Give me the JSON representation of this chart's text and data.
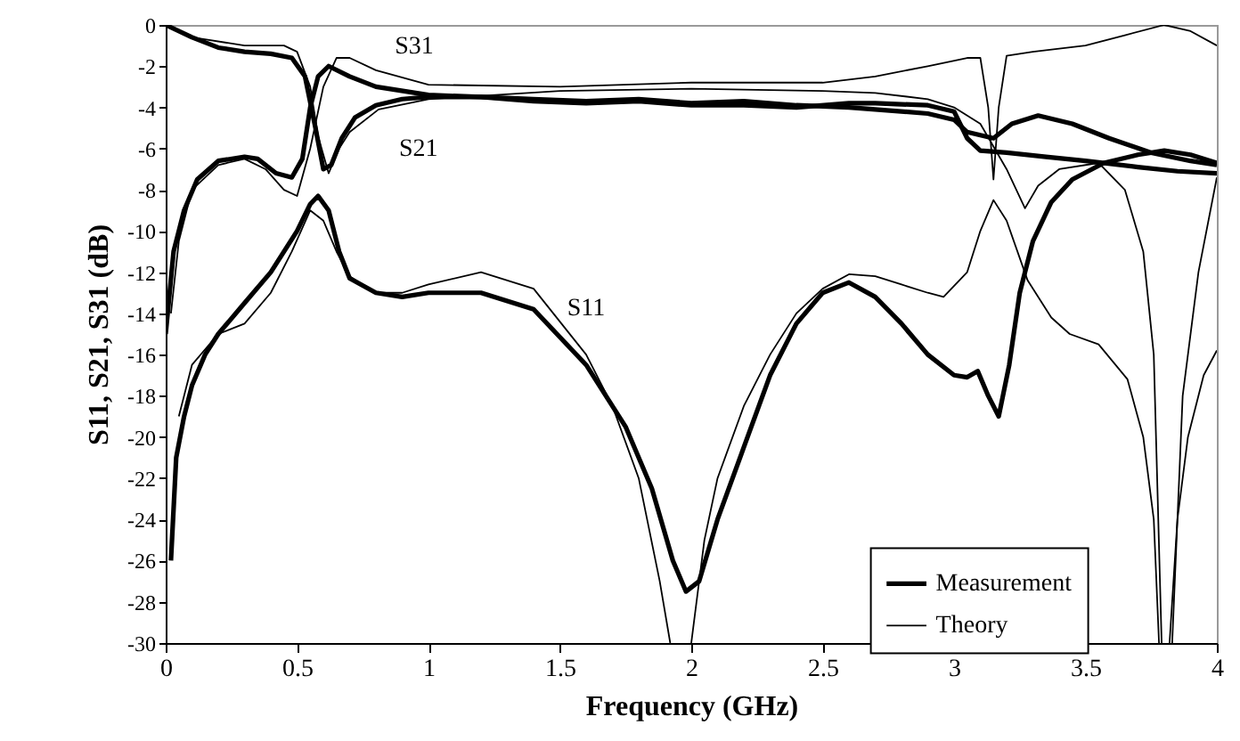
{
  "chart_data": {
    "type": "line",
    "xlabel": "Frequency (GHz)",
    "ylabel": "S11, S21, S31 (dB)",
    "xlim": [
      0,
      4
    ],
    "xticks": [
      0,
      0.5,
      1,
      1.5,
      2,
      2.5,
      3,
      3.5,
      4
    ],
    "ylim": [
      -30,
      0
    ],
    "yticks": [
      -30,
      -28,
      -26,
      -24,
      -22,
      -20,
      -18,
      -16,
      -14,
      -12,
      -10,
      -8,
      -6,
      -4,
      -2,
      0
    ],
    "grid": false,
    "legend": "bottom right",
    "annotations": [
      "S31",
      "S21",
      "S11"
    ],
    "series": [
      {
        "name": "Measurement",
        "color": "#000000",
        "x": [
          0.02,
          0.04,
          0.07,
          0.1,
          0.15,
          0.2,
          0.3,
          0.4,
          0.5,
          0.55,
          0.58,
          0.62,
          0.66,
          0.7,
          0.8,
          0.9,
          1.0,
          1.2,
          1.4,
          1.6,
          1.75,
          1.85,
          1.93,
          1.98,
          2.03,
          2.1,
          2.2,
          2.3,
          2.4,
          2.5,
          2.6,
          2.7,
          2.8,
          2.9,
          3.0,
          3.05,
          3.09,
          3.13,
          3.17,
          3.21,
          3.25,
          3.3,
          3.37,
          3.45,
          3.57,
          3.7,
          3.8,
          3.9,
          4.0
        ],
        "values": [
          -26,
          -21,
          -19,
          -17.5,
          -16,
          -15,
          -13.5,
          -12,
          -10,
          -8.7,
          -8.3,
          -9,
          -11,
          -12.3,
          -13,
          -13.2,
          -13,
          -13,
          -13.8,
          -16.5,
          -19.5,
          -22.5,
          -26,
          -27.5,
          -27,
          -24,
          -20.5,
          -17,
          -14.5,
          -13,
          -12.5,
          -13.2,
          -14.5,
          -16,
          -17,
          -17.1,
          -16.8,
          -18,
          -19,
          -16.5,
          -13,
          -10.5,
          -8.6,
          -7.5,
          -6.7,
          -6.3,
          -6.1,
          -6.3,
          -6.7
        ]
      },
      {
        "name": "Theory",
        "color": "#000000",
        "x": [
          0.05,
          0.1,
          0.2,
          0.3,
          0.4,
          0.48,
          0.55,
          0.6,
          0.65,
          0.7,
          0.8,
          0.9,
          1.0,
          1.2,
          1.4,
          1.6,
          1.7,
          1.8,
          1.88,
          1.92,
          1.96,
          2.0,
          2.05,
          2.1,
          2.2,
          2.3,
          2.4,
          2.5,
          2.6,
          2.7,
          2.8,
          2.9,
          2.96,
          3.05,
          3.1,
          3.15,
          3.2,
          3.28,
          3.37,
          3.44,
          3.55,
          3.66,
          3.72,
          3.76,
          3.78,
          3.8,
          3.82,
          3.85,
          3.89,
          3.95,
          4.0
        ],
        "values": [
          -19,
          -16.5,
          -15,
          -14.5,
          -13,
          -11,
          -9,
          -9.5,
          -11,
          -12.2,
          -13,
          -13,
          -12.6,
          -12,
          -12.8,
          -16,
          -18.5,
          -22,
          -27,
          -30,
          null,
          -30,
          -25,
          -22,
          -18.5,
          -16,
          -14,
          -12.8,
          -12.1,
          -12.2,
          -12.6,
          -13,
          -13.2,
          -12,
          -10,
          -8.5,
          -9.5,
          -12.4,
          -14.2,
          -15,
          -15.5,
          -17.2,
          -20,
          -24,
          -30,
          null,
          -30,
          -24,
          -20,
          -17,
          -15.8
        ]
      },
      {
        "color": "#000000",
        "x": [
          0,
          0.1,
          0.2,
          0.3,
          0.4,
          0.48,
          0.53,
          0.57,
          0.6,
          0.63,
          0.67,
          0.72,
          0.8,
          0.9,
          1.0,
          1.2,
          1.4,
          1.6,
          1.8,
          2.0,
          2.2,
          2.4,
          2.6,
          2.7,
          2.9,
          3.0,
          3.05,
          3.15,
          3.22,
          3.32,
          3.45,
          3.59,
          3.75,
          3.9,
          4.0
        ],
        "values": [
          0,
          -0.6,
          -1.1,
          -1.3,
          -1.4,
          -1.6,
          -2.5,
          -5,
          -7,
          -6.8,
          -5.5,
          -4.5,
          -3.9,
          -3.6,
          -3.5,
          -3.5,
          -3.6,
          -3.7,
          -3.6,
          -3.8,
          -3.7,
          -3.9,
          -4.0,
          -4.1,
          -4.3,
          -4.6,
          -5.2,
          -5.5,
          -4.8,
          -4.4,
          -4.8,
          -5.5,
          -6.2,
          -6.6,
          -6.8
        ]
      },
      {
        "color": "#000000",
        "x": [
          0,
          0.1,
          0.3,
          0.45,
          0.5,
          0.55,
          0.58,
          0.62,
          0.66,
          0.7,
          0.81,
          1.0,
          1.5,
          2.0,
          2.5,
          2.7,
          2.9,
          3.0,
          3.1,
          3.2,
          3.27,
          3.32,
          3.4,
          3.55,
          3.65,
          3.72,
          3.76,
          3.79,
          3.81,
          3.83,
          3.87,
          3.93,
          4.0
        ],
        "values": [
          0,
          -0.6,
          -1.0,
          -1.0,
          -1.3,
          -3,
          -5.4,
          -7.2,
          -6,
          -5.2,
          -4.1,
          -3.6,
          -3.2,
          -3.1,
          -3.2,
          -3.3,
          -3.6,
          -4,
          -4.8,
          -7,
          -8.9,
          -7.8,
          -7,
          -6.7,
          -8,
          -11,
          -16,
          -30,
          null,
          -30,
          -18,
          -12,
          -7.4
        ]
      },
      {
        "color": "#000000",
        "x": [
          0,
          0.03,
          0.07,
          0.12,
          0.2,
          0.3,
          0.35,
          0.42,
          0.48,
          0.52,
          0.55,
          0.58,
          0.62,
          0.7,
          0.8,
          1.0,
          1.2,
          1.4,
          1.6,
          1.8,
          2.0,
          2.2,
          2.4,
          2.6,
          2.7,
          2.9,
          3.0,
          3.05,
          3.1,
          3.2,
          3.35,
          3.5,
          3.7,
          3.85,
          4.0
        ],
        "values": [
          -15,
          -11,
          -9,
          -7.5,
          -6.6,
          -6.4,
          -6.5,
          -7.2,
          -7.4,
          -6.5,
          -4,
          -2.5,
          -2.0,
          -2.5,
          -3.0,
          -3.4,
          -3.5,
          -3.7,
          -3.8,
          -3.7,
          -3.9,
          -3.9,
          -4.0,
          -3.8,
          -3.8,
          -3.9,
          -4.2,
          -5.5,
          -6.1,
          -6.2,
          -6.4,
          -6.6,
          -6.9,
          -7.1,
          -7.2
        ]
      },
      {
        "color": "#000000",
        "x": [
          0.02,
          0.05,
          0.1,
          0.2,
          0.3,
          0.38,
          0.45,
          0.5,
          0.55,
          0.6,
          0.65,
          0.7,
          0.8,
          1.0,
          1.5,
          2.0,
          2.5,
          2.7,
          2.9,
          3.05,
          3.1,
          3.13,
          3.15,
          3.17,
          3.2,
          3.3,
          3.5,
          3.65,
          3.8,
          3.9,
          4.0
        ],
        "values": [
          -14,
          -10.5,
          -8,
          -6.8,
          -6.5,
          -7,
          -8,
          -8.3,
          -6,
          -3,
          -1.6,
          -1.6,
          -2.2,
          -2.9,
          -3.0,
          -2.8,
          -2.8,
          -2.5,
          -2.0,
          -1.6,
          -1.6,
          -4,
          -7.5,
          -4,
          -1.5,
          -1.3,
          -1.0,
          -0.5,
          0,
          -0.3,
          -1.0
        ]
      }
    ]
  }
}
